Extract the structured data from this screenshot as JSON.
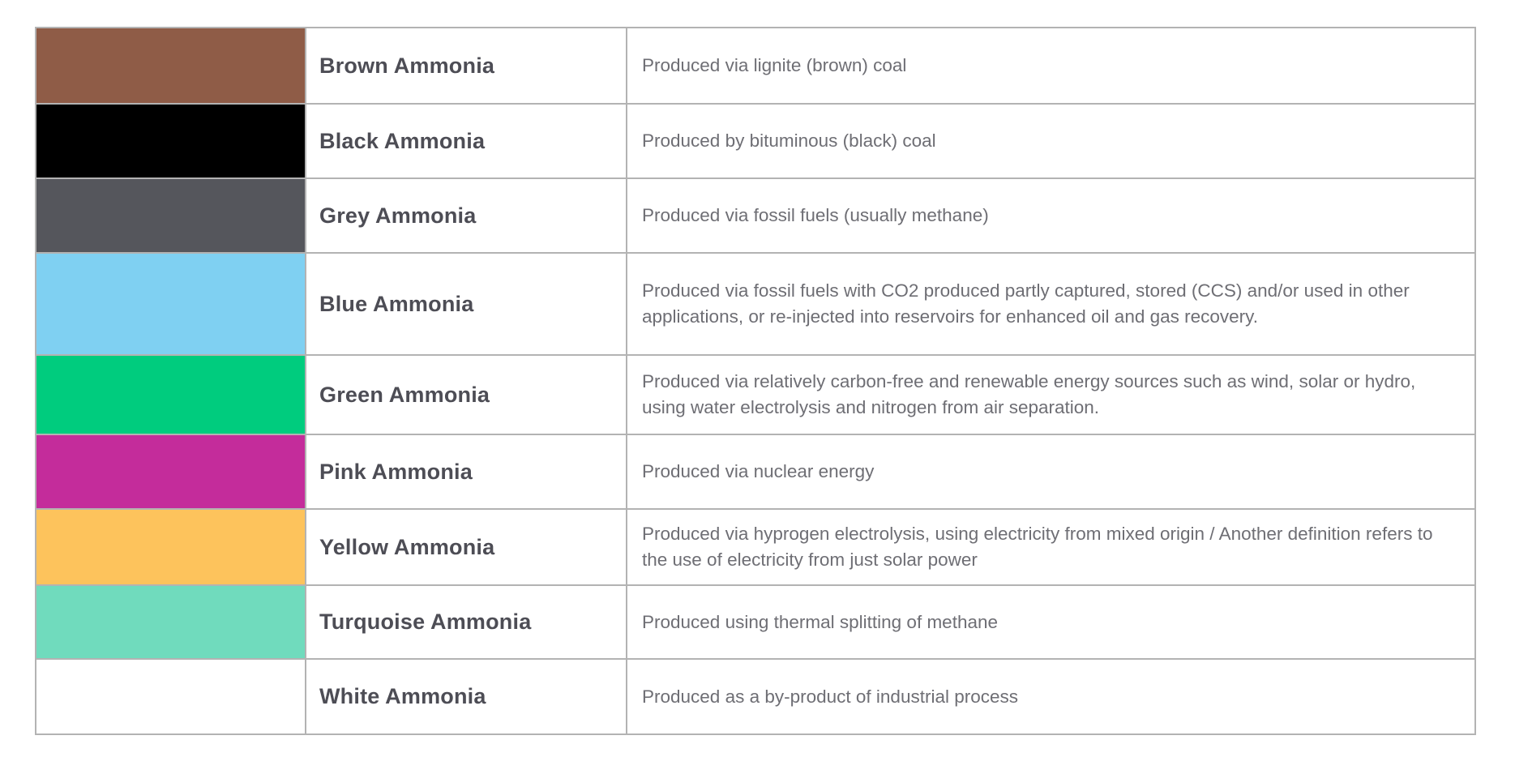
{
  "table": {
    "border_color": "#b3b3b3",
    "name_text_color": "#4d4d55",
    "description_text_color": "#6e6e74",
    "columns": [
      "color-swatch",
      "ammonia-type",
      "production-description"
    ],
    "rows": [
      {
        "name": "Brown Ammonia",
        "color": "#8F5C47",
        "description": "Produced via lignite (brown) coal"
      },
      {
        "name": "Black Ammonia",
        "color": "#000000",
        "description": "Produced by bituminous (black) coal"
      },
      {
        "name": "Grey Ammonia",
        "color": "#55565C",
        "description": "Produced via fossil fuels (usually methane)"
      },
      {
        "name": "Blue Ammonia",
        "color": "#7FD0F2",
        "description": "Produced via fossil fuels with CO2 produced partly captured, stored (CCS) and/or used in other applications, or re-injected into reservoirs for enhanced oil and gas recovery."
      },
      {
        "name": "Green Ammonia",
        "color": "#00CC7E",
        "description": "Produced via relatively carbon-free and renewable energy sources such as wind, solar or hydro, using water electrolysis and nitrogen from air separation."
      },
      {
        "name": "Pink Ammonia",
        "color": "#C42C9B",
        "description": "Produced via nuclear energy"
      },
      {
        "name": "Yellow Ammonia",
        "color": "#FDC35C",
        "description": "Produced via hyprogen electrolysis, using electricity from mixed origin / Another definition refers to the use of electricity from just solar power"
      },
      {
        "name": "Turquoise Ammonia",
        "color": "#70DBBD",
        "description": "Produced using thermal splitting of methane"
      },
      {
        "name": "White Ammonia",
        "color": "#FFFFFF",
        "description": "Produced as a by-product of industrial process"
      }
    ]
  }
}
